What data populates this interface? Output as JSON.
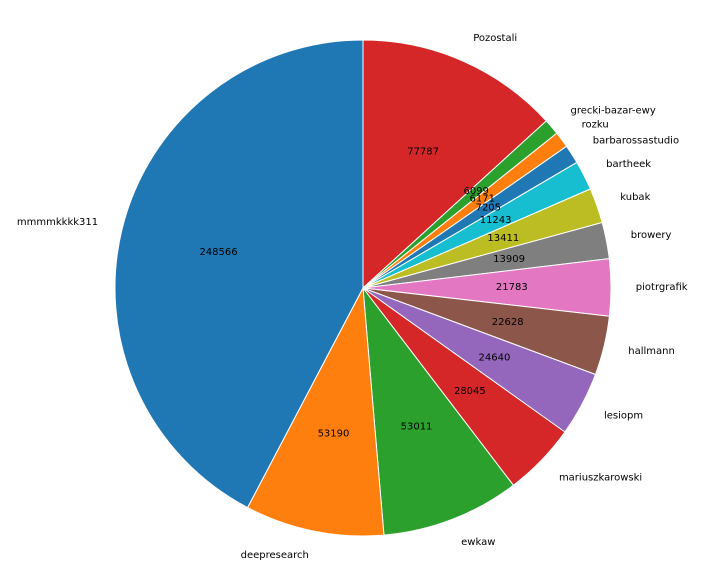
{
  "chart_data": {
    "type": "pie",
    "start_angle_deg": 90,
    "direction": "clockwise",
    "slices": [
      {
        "label": "Pozostali",
        "value": 77787,
        "color": "#d62728"
      },
      {
        "label": "grecki-bazar-ewy",
        "value": 6099,
        "color": "#2ca02c"
      },
      {
        "label": "rozku",
        "value": 6171,
        "color": "#ff7f0e"
      },
      {
        "label": "barbarossastudio",
        "value": 7205,
        "color": "#1f77b4"
      },
      {
        "label": "bartheek",
        "value": 11243,
        "color": "#17becf"
      },
      {
        "label": "kubak",
        "value": 13411,
        "color": "#bcbd22"
      },
      {
        "label": "browery",
        "value": 13909,
        "color": "#7f7f7f"
      },
      {
        "label": "piotrgrafik",
        "value": 21783,
        "color": "#e377c2"
      },
      {
        "label": "hallmann",
        "value": 22628,
        "color": "#8c564b"
      },
      {
        "label": "lesiopm",
        "value": 24640,
        "color": "#9467bd"
      },
      {
        "label": "mariuszkarowski",
        "value": 28045,
        "color": "#d62728"
      },
      {
        "label": "ewkaw",
        "value": 53011,
        "color": "#2ca02c"
      },
      {
        "label": "deepresearch",
        "value": 53190,
        "color": "#ff7f0e"
      },
      {
        "label": "mmmmkkkk311",
        "value": 248566,
        "color": "#1f77b4"
      }
    ]
  }
}
